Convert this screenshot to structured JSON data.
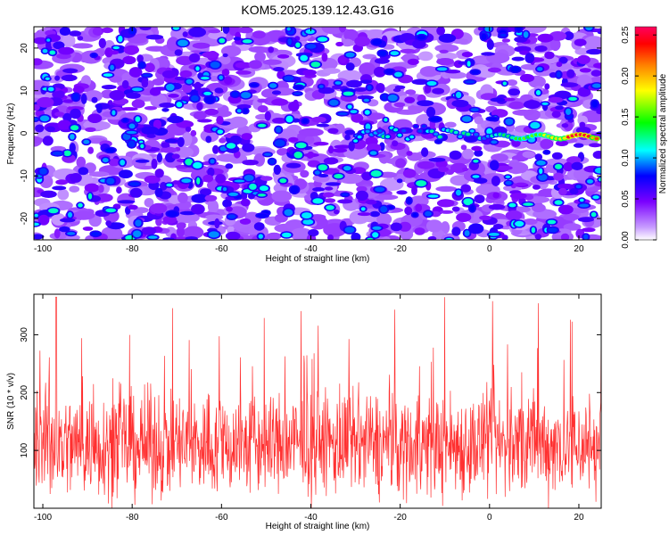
{
  "title": "KOM5.2025.139.12.43.G16",
  "chart_data": [
    {
      "type": "heatmap",
      "xlabel": "Height of straight line (km)",
      "ylabel": "Frequency (Hz)",
      "xlim": [
        -102,
        25
      ],
      "ylim": [
        -25,
        25
      ],
      "x_ticks": [
        -100,
        -80,
        -60,
        -40,
        -20,
        0,
        20
      ],
      "y_ticks": [
        -20,
        -10,
        0,
        10,
        20
      ],
      "colorbar": {
        "label": "Normalized spectral amplitude",
        "range": [
          0.0,
          0.26
        ],
        "ticks": [
          "0.00",
          "0.05",
          "0.10",
          "0.15",
          "0.20",
          "0.25"
        ],
        "colors": [
          "#ffffff",
          "#b57bff",
          "#7a00ff",
          "#0000ff",
          "#00ffff",
          "#00ff00",
          "#ffff00",
          "#ff8000",
          "#ff0000",
          "#ff0060"
        ]
      },
      "features": [
        {
          "note": "signal streak",
          "x_start": 0,
          "x_end": 24,
          "frequency": 0,
          "peak_x": 20,
          "peak_value": 0.25
        }
      ]
    },
    {
      "type": "line",
      "xlabel": "Height of straight line (km)",
      "ylabel": "SNR (10 * v/v)",
      "xlim": [
        -102,
        25
      ],
      "ylim": [
        0,
        370
      ],
      "x_ticks": [
        -100,
        -80,
        -60,
        -40,
        -20,
        0,
        20
      ],
      "y_ticks": [
        100,
        200,
        300
      ],
      "color": "#ff3030",
      "summary": {
        "mean": 110,
        "min": 0,
        "max": 365,
        "max_at_x": -97
      }
    }
  ]
}
